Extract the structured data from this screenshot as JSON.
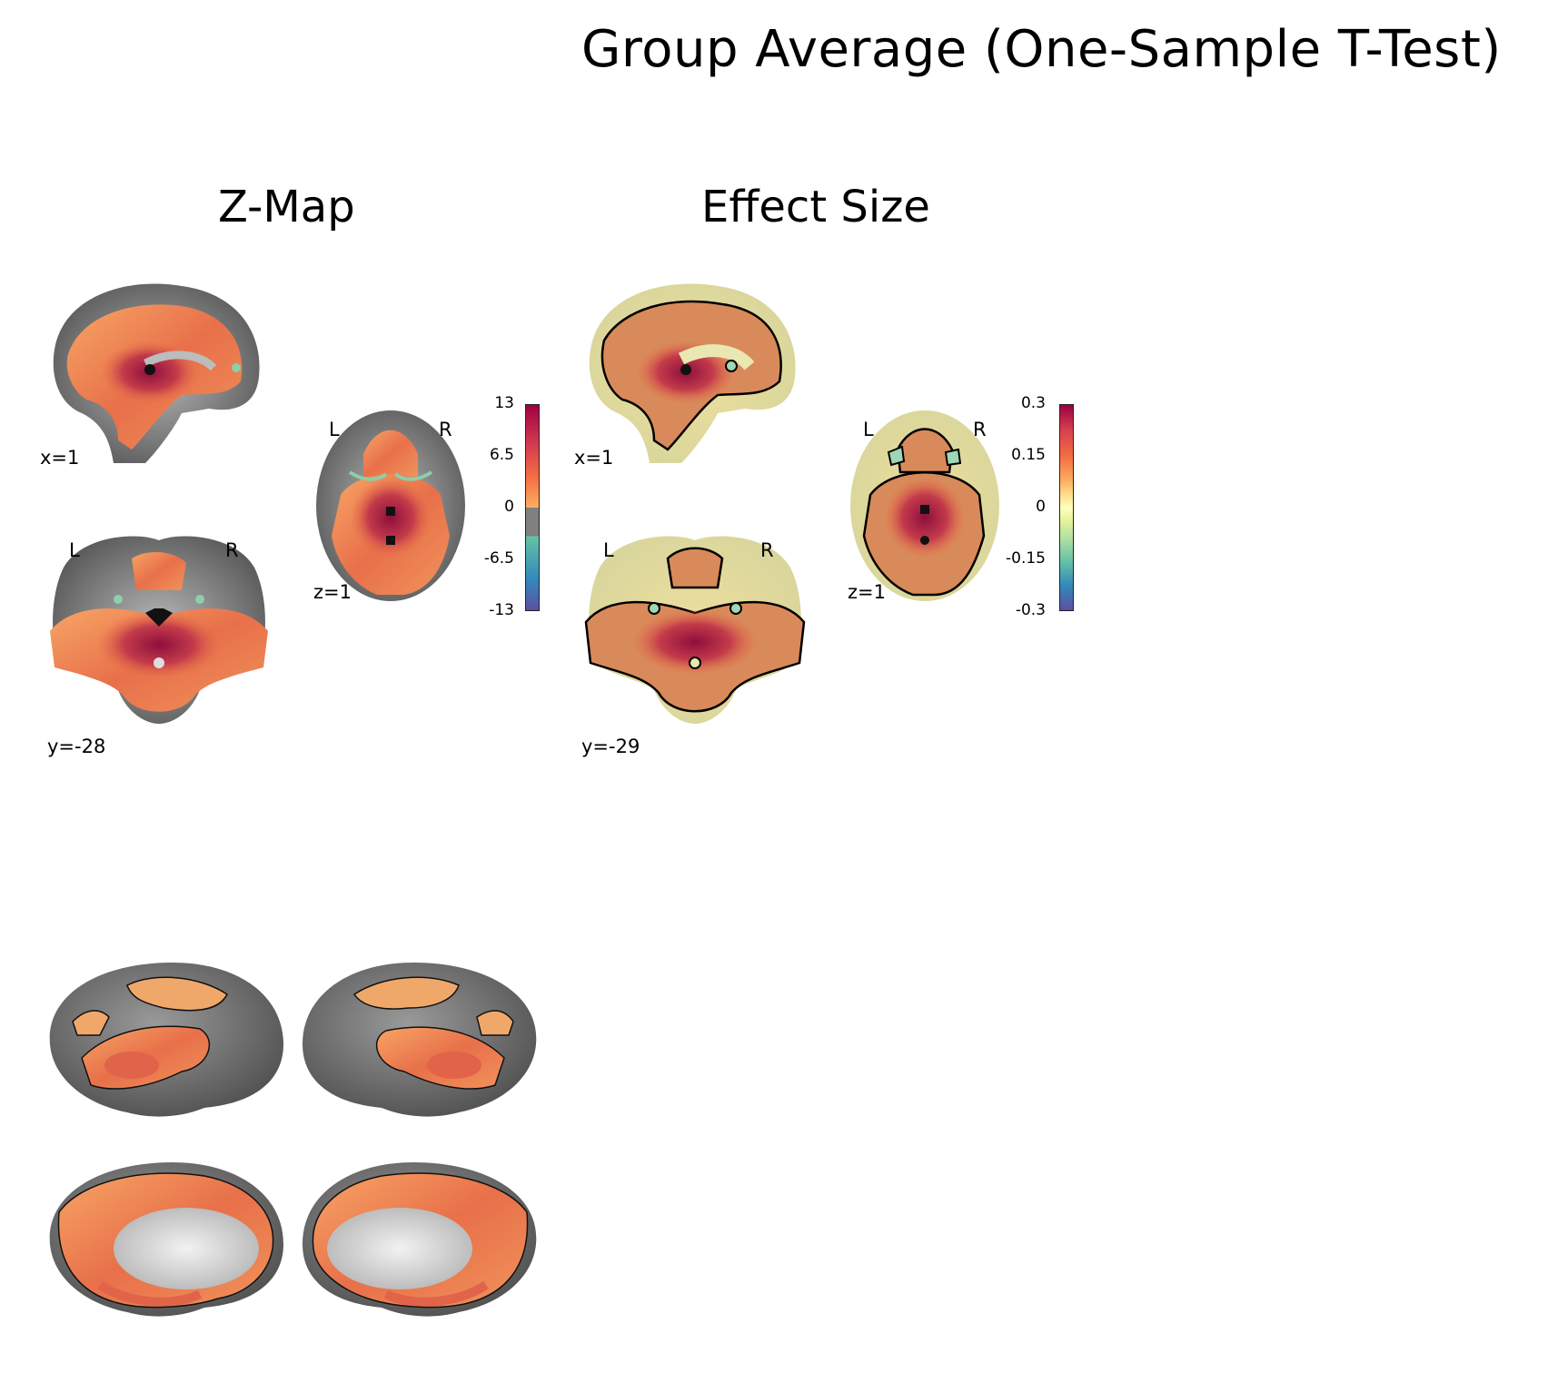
{
  "figure": {
    "title": "Group Average (One-Sample T-Test)"
  },
  "zmap": {
    "title": "Z-Map",
    "sagittal_label": "x=1",
    "coronal_label": "y=-28",
    "axial_label": "z=1",
    "left_marker": "L",
    "right_marker": "R",
    "colorbar": {
      "ticks": [
        "13",
        "6.5",
        "0",
        "-6.5",
        "-13"
      ],
      "colors": [
        "#9e0142",
        "#d53e4f",
        "#f46d43",
        "#fdae61",
        "#808080",
        "#66c2a5",
        "#3288bd",
        "#5e4fa2"
      ]
    }
  },
  "effect": {
    "title": "Effect Size",
    "sagittal_label": "x=1",
    "coronal_label": "y=-29",
    "axial_label": "z=1",
    "left_marker": "L",
    "right_marker": "R",
    "colorbar": {
      "ticks": [
        "0.3",
        "0.15",
        "0",
        "-0.15",
        "-0.3"
      ],
      "colors": [
        "#9e0142",
        "#d53e4f",
        "#f46d43",
        "#fdae61",
        "#fee08b",
        "#ffffbf",
        "#e6f598",
        "#abdda4",
        "#66c2a5",
        "#3288bd",
        "#5e4fa2"
      ]
    }
  },
  "surface": {
    "views": [
      "lateral-left",
      "lateral-right",
      "medial-left",
      "medial-right"
    ]
  }
}
